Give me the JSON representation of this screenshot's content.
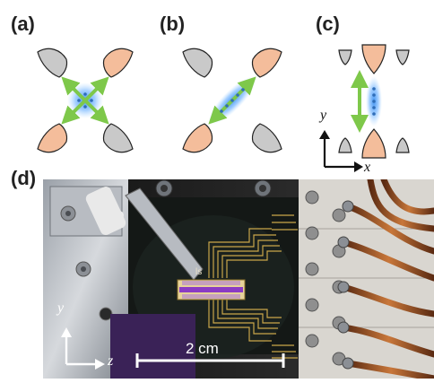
{
  "panels": {
    "a": {
      "label": "(a)"
    },
    "b": {
      "label": "(b)"
    },
    "c": {
      "label": "(c)"
    },
    "d": {
      "label": "(d)"
    }
  },
  "panel_c": {
    "axis_y": "y",
    "axis_x": "x"
  },
  "photo": {
    "axis_y": "y",
    "axis_z": "z",
    "scale_bar": "2 cm",
    "chip_text": "ls"
  },
  "colors": {
    "electrode_orange": "#f4bd9b",
    "electrode_gray": "#c9c9c9",
    "arrow_green": "#7ec84a",
    "ion_glow": "#3b8ff0",
    "pcb_purple": "#4a2c6e",
    "trap_purple": "#8a3bc4"
  }
}
